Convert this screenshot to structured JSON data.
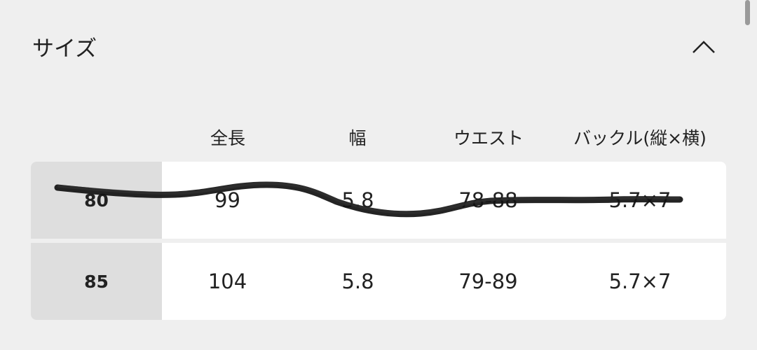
{
  "section": {
    "title": "サイズ",
    "expanded": true,
    "toggle_icon": "chevron-up-icon"
  },
  "table": {
    "columns": [
      "全長",
      "幅",
      "ウエスト",
      "バックル(縦×横)"
    ],
    "rows": [
      {
        "size": "80",
        "values": [
          "99",
          "5.8",
          "78-88",
          "5.7×7"
        ],
        "crossed_out": true
      },
      {
        "size": "85",
        "values": [
          "104",
          "5.8",
          "79-89",
          "5.7×7"
        ],
        "crossed_out": false
      }
    ]
  },
  "colors": {
    "background": "#efefef",
    "row_header": "#dedede",
    "cell": "#ffffff",
    "scribble": "#111111"
  }
}
